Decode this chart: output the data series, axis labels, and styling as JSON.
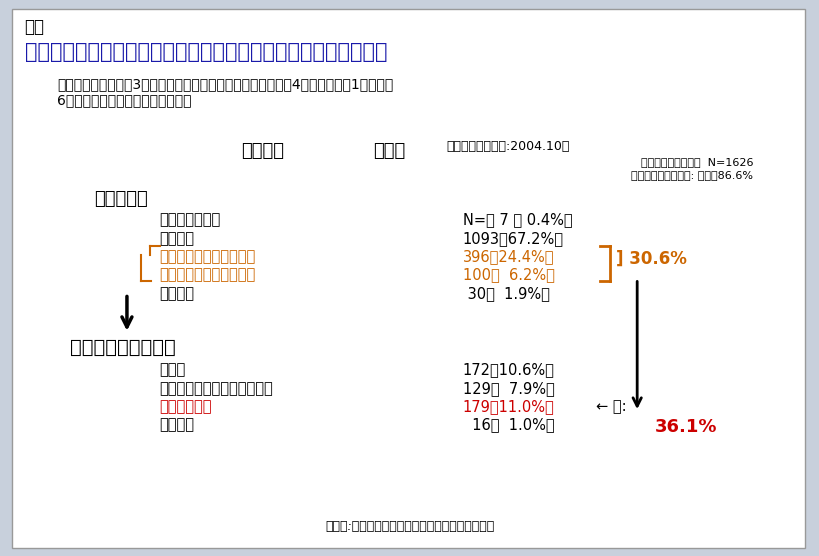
{
  "bg_color": "#c8d0dc",
  "box_color": "#ffffff",
  "title_label": "表１",
  "main_title": "災害時の生活機能低下の実態（１）－回復困難な歩行困難の発生",
  "subtitle_line1": "非要介護認定者の約3割に災害後に歩行困難が生じ、そのうち4割弱（全体の1割強）が",
  "subtitle_line2": "6ヵ月後にも回復していなかった。",
  "chart_title_bold": "歩行状態",
  "chart_title_rest": "の変化",
  "chart_title_small": "（新潟県中越地震:2004.10）",
  "note_line1": "非要介護認定高齢者  N=1626",
  "note_line2": "長岡市避難勧告地域: 回収率86.6%",
  "section1_title": "地震の影響",
  "s1_labels": [
    "地震前より改善",
    "変化なし",
    "屋外歩行が難しくなった",
    "室内歩行も難しくなった",
    "回答なし"
  ],
  "s1_values": [
    "N=　 7 （ 0.4%）",
    "1093（67.2%）",
    "396（24.4%）",
    "100（  6.2%）",
    " 30（  1.9%）"
  ],
  "s1_label_colors": [
    "#000000",
    "#000000",
    "#cc6600",
    "#cc6600",
    "#000000"
  ],
  "s1_value_colors": [
    "#000000",
    "#000000",
    "#cc6600",
    "#cc6600",
    "#000000"
  ],
  "bracket_label": "] 30.6%",
  "section2_title": "地震前に戻ったか？",
  "s2_labels": [
    "戻った",
    "戻ったが雪の影響で再度低下",
    "戻っていない",
    "回答なし"
  ],
  "s2_values": [
    "172（10.6%）",
    "129（  7.9%）",
    "179（11.0%）",
    "  16（  1.0%）"
  ],
  "s2_label_colors": [
    "#000000",
    "#000000",
    "#cc0000",
    "#000000"
  ],
  "s2_value_colors": [
    "#000000",
    "#000000",
    "#cc0000",
    "#000000"
  ],
  "arrow_label": "← 内:",
  "pct_label": "36.1%",
  "footer": "［協力:長岡市、長岡地域振興局健康福祉環境部］",
  "title_color": "#1a1aaa",
  "orange_color": "#cc6600",
  "red_color": "#cc0000",
  "black_color": "#000000"
}
